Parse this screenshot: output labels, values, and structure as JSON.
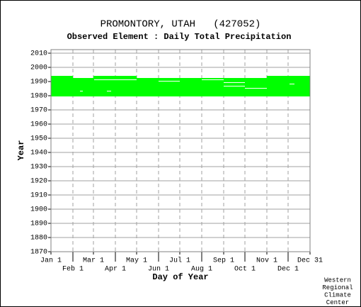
{
  "chart_data": {
    "type": "availability",
    "title": "PROMONTORY, UTAH   (427052)",
    "subtitle": "Observed Element : Daily Total Precipitation",
    "xlabel": "Day of Year",
    "ylabel": "Year",
    "credit": [
      "Western",
      "Regional",
      "Climate",
      "Center"
    ],
    "xlim": [
      1,
      367
    ],
    "ylim": [
      1870,
      2012.5
    ],
    "xticks": [
      {
        "value": 1,
        "label": "Jan 1"
      },
      {
        "value": 32,
        "label": "Feb 1"
      },
      {
        "value": 61,
        "label": "Mar 1"
      },
      {
        "value": 92,
        "label": "Apr 1"
      },
      {
        "value": 122,
        "label": "May 1"
      },
      {
        "value": 153,
        "label": "Jun 1"
      },
      {
        "value": 183,
        "label": "Jul 1"
      },
      {
        "value": 214,
        "label": "Aug 1"
      },
      {
        "value": 245,
        "label": "Sep 1"
      },
      {
        "value": 275,
        "label": "Oct 1"
      },
      {
        "value": 306,
        "label": "Nov 1"
      },
      {
        "value": 336,
        "label": "Dec 1"
      },
      {
        "value": 367,
        "label": "Dec 31"
      }
    ],
    "yticks": [
      1870,
      1880,
      1890,
      1900,
      1910,
      1920,
      1930,
      1940,
      1950,
      1960,
      1970,
      1980,
      1990,
      2000,
      2010
    ],
    "grid": true,
    "color": "#00ff00",
    "gap_color": "#ffffff",
    "bands": [
      {
        "x": [
          1,
          32
        ],
        "y": [
          1979.5,
          1994
        ]
      },
      {
        "x": [
          32,
          61
        ],
        "y": [
          1979.5,
          1992.5
        ]
      },
      {
        "x": [
          61,
          122
        ],
        "y": [
          1979.5,
          1994
        ]
      },
      {
        "x": [
          122,
          306
        ],
        "y": [
          1979.5,
          1992.5
        ]
      },
      {
        "x": [
          306,
          367
        ],
        "y": [
          1979.5,
          1994
        ]
      }
    ],
    "gaps": [
      {
        "x": [
          42,
          46
        ],
        "y": [
          1983,
          1983.5
        ]
      },
      {
        "x": [
          80,
          86
        ],
        "y": [
          1983,
          1983.5
        ]
      },
      {
        "x": [
          62,
          122
        ],
        "y": [
          1991,
          1991.5
        ]
      },
      {
        "x": [
          153,
          183
        ],
        "y": [
          1990,
          1990.5
        ]
      },
      {
        "x": [
          214,
          245
        ],
        "y": [
          1991,
          1991.5
        ]
      },
      {
        "x": [
          245,
          275
        ],
        "y": [
          1989,
          1989.5
        ]
      },
      {
        "x": [
          245,
          275
        ],
        "y": [
          1986.5,
          1987
        ]
      },
      {
        "x": [
          275,
          306
        ],
        "y": [
          1985,
          1985.5
        ]
      },
      {
        "x": [
          338,
          345
        ],
        "y": [
          1988,
          1988.5
        ]
      }
    ]
  }
}
